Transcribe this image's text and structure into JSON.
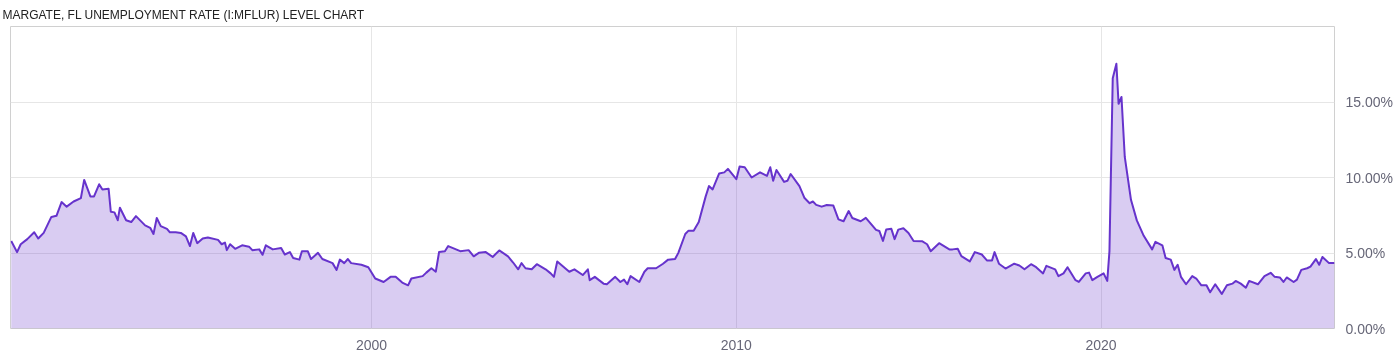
{
  "chart_data": {
    "type": "area",
    "title": "MARGATE, FL UNEMPLOYMENT RATE (I:MFLUR) LEVEL CHART",
    "xlim": [
      1990.1,
      2026.4
    ],
    "xticks": [
      2000,
      2010,
      2020
    ],
    "ylim": [
      0,
      20
    ],
    "yticks": [
      {
        "value": 0,
        "label": "0.00%"
      },
      {
        "value": 5,
        "label": "5.00%"
      },
      {
        "value": 10,
        "label": "10.00%"
      },
      {
        "value": 15,
        "label": "15.00%"
      }
    ],
    "grid": true,
    "series": [
      {
        "color": "#6633cc",
        "x": [
          1990.12,
          1990.28,
          1990.38,
          1990.56,
          1990.75,
          1990.86,
          1991.01,
          1991.22,
          1991.36,
          1991.5,
          1991.64,
          1991.83,
          1992.03,
          1992.12,
          1992.29,
          1992.39,
          1992.53,
          1992.62,
          1992.79,
          1992.85,
          1992.95,
          1993.04,
          1993.1,
          1993.27,
          1993.41,
          1993.54,
          1993.79,
          1993.93,
          1994.02,
          1994.11,
          1994.22,
          1994.39,
          1994.47,
          1994.63,
          1994.77,
          1994.91,
          1995.02,
          1995.11,
          1995.22,
          1995.37,
          1995.51,
          1995.79,
          1995.89,
          1995.98,
          1996.03,
          1996.12,
          1996.26,
          1996.45,
          1996.64,
          1996.73,
          1996.92,
          1997.01,
          1997.1,
          1997.29,
          1997.52,
          1997.62,
          1997.76,
          1997.85,
          1998.02,
          1998.09,
          1998.25,
          1998.34,
          1998.53,
          1998.65,
          1998.93,
          1999.04,
          1999.13,
          1999.25,
          1999.35,
          1999.44,
          1999.72,
          1999.91,
          2000.1,
          2000.33,
          2000.52,
          2000.66,
          2000.84,
          2001.0,
          2001.09,
          2001.4,
          2001.5,
          2001.64,
          2001.76,
          2001.85,
          2002.01,
          2002.1,
          2002.43,
          2002.66,
          2002.8,
          2002.94,
          2003.13,
          2003.32,
          2003.5,
          2003.74,
          2003.88,
          2004.02,
          2004.11,
          2004.22,
          2004.39,
          2004.53,
          2004.77,
          2004.91,
          2005.0,
          2005.09,
          2005.42,
          2005.56,
          2005.79,
          2005.93,
          2005.98,
          2006.12,
          2006.36,
          2006.45,
          2006.68,
          2006.82,
          2006.92,
          2007.01,
          2007.1,
          2007.34,
          2007.48,
          2007.57,
          2007.8,
          2007.99,
          2008.13,
          2008.32,
          2008.41,
          2008.6,
          2008.69,
          2008.83,
          2008.97,
          2009.16,
          2009.25,
          2009.35,
          2009.53,
          2009.67,
          2009.77,
          2010.0,
          2010.09,
          2010.23,
          2010.42,
          2010.65,
          2010.84,
          2010.93,
          2011.01,
          2011.1,
          2011.31,
          2011.4,
          2011.49,
          2011.73,
          2011.87,
          2012.01,
          2012.1,
          2012.19,
          2012.34,
          2012.48,
          2012.66,
          2012.8,
          2012.94,
          2013.08,
          2013.18,
          2013.41,
          2013.55,
          2013.83,
          2013.92,
          2014.02,
          2014.11,
          2014.25,
          2014.34,
          2014.44,
          2014.58,
          2014.72,
          2014.86,
          2015.09,
          2015.23,
          2015.33,
          2015.56,
          2015.84,
          2015.93,
          2016.07,
          2016.17,
          2016.4,
          2016.54,
          2016.73,
          2016.87,
          2017.01,
          2017.08,
          2017.2,
          2017.38,
          2017.62,
          2017.76,
          2017.9,
          2018.08,
          2018.22,
          2018.41,
          2018.5,
          2018.74,
          2018.83,
          2018.97,
          2019.08,
          2019.3,
          2019.39,
          2019.58,
          2019.67,
          2019.76,
          2019.9,
          2020.07,
          2020.17,
          2020.23,
          2020.32,
          2020.42,
          2020.48,
          2020.56,
          2020.65,
          2020.82,
          2020.98,
          2021.17,
          2021.4,
          2021.49,
          2021.68,
          2021.77,
          2021.91,
          2022.01,
          2022.1,
          2022.19,
          2022.33,
          2022.5,
          2022.61,
          2022.75,
          2022.89,
          2022.99,
          2023.13,
          2023.31,
          2023.45,
          2023.6,
          2023.69,
          2023.83,
          2023.97,
          2024.06,
          2024.3,
          2024.48,
          2024.65,
          2024.76,
          2024.9,
          2025.0,
          2025.09,
          2025.28,
          2025.37,
          2025.49,
          2025.65,
          2025.74,
          2025.89,
          2025.98,
          2026.07,
          2026.25,
          2026.4
        ],
        "values": [
          5.8,
          5.06,
          5.58,
          5.92,
          6.37,
          5.96,
          6.33,
          7.39,
          7.46,
          8.37,
          8.07,
          8.41,
          8.64,
          9.84,
          8.75,
          8.75,
          9.55,
          9.21,
          9.25,
          7.73,
          7.69,
          7.17,
          8.0,
          7.17,
          7.05,
          7.44,
          6.83,
          6.67,
          6.26,
          7.32,
          6.78,
          6.6,
          6.37,
          6.37,
          6.33,
          6.1,
          5.46,
          6.33,
          5.65,
          5.96,
          6.03,
          5.87,
          5.58,
          5.69,
          5.19,
          5.58,
          5.28,
          5.51,
          5.42,
          5.19,
          5.24,
          4.88,
          5.51,
          5.24,
          5.33,
          4.9,
          5.06,
          4.67,
          4.56,
          5.12,
          5.12,
          4.6,
          5.01,
          4.6,
          4.33,
          3.88,
          4.56,
          4.33,
          4.6,
          4.33,
          4.22,
          4.06,
          3.31,
          3.08,
          3.42,
          3.42,
          3.04,
          2.86,
          3.31,
          3.47,
          3.7,
          3.99,
          3.76,
          5.06,
          5.12,
          5.46,
          5.12,
          5.19,
          4.78,
          5.01,
          5.06,
          4.74,
          5.17,
          4.78,
          4.37,
          3.92,
          4.33,
          3.99,
          3.92,
          4.26,
          3.92,
          3.65,
          3.42,
          4.44,
          3.76,
          3.92,
          3.54,
          3.92,
          3.2,
          3.42,
          2.97,
          2.93,
          3.42,
          3.08,
          3.24,
          2.93,
          3.47,
          3.08,
          3.76,
          3.99,
          3.99,
          4.29,
          4.56,
          4.6,
          5.01,
          6.26,
          6.48,
          6.48,
          7.05,
          8.75,
          9.43,
          9.21,
          10.27,
          10.34,
          10.57,
          9.89,
          10.73,
          10.68,
          10.0,
          10.34,
          10.11,
          10.68,
          9.78,
          10.5,
          9.71,
          9.78,
          10.23,
          9.43,
          8.64,
          8.3,
          8.41,
          8.19,
          8.07,
          8.18,
          8.14,
          7.23,
          7.1,
          7.78,
          7.32,
          7.1,
          7.33,
          6.53,
          6.46,
          5.8,
          6.55,
          6.6,
          5.92,
          6.55,
          6.64,
          6.33,
          5.8,
          5.78,
          5.58,
          5.12,
          5.65,
          5.24,
          5.24,
          5.28,
          4.79,
          4.44,
          5.06,
          4.9,
          4.51,
          4.51,
          5.06,
          4.29,
          3.97,
          4.29,
          4.17,
          3.92,
          4.26,
          4.06,
          3.65,
          4.15,
          3.92,
          3.47,
          3.65,
          4.06,
          3.2,
          3.08,
          3.65,
          3.7,
          3.2,
          3.42,
          3.65,
          3.15,
          5.12,
          16.58,
          17.53,
          14.88,
          15.33,
          11.36,
          8.52,
          7.16,
          6.14,
          5.24,
          5.74,
          5.51,
          4.67,
          4.56,
          3.88,
          4.22,
          3.42,
          2.93,
          3.47,
          3.31,
          2.86,
          2.86,
          2.4,
          2.93,
          2.29,
          2.86,
          2.97,
          3.15,
          2.97,
          2.7,
          3.15,
          2.93,
          3.47,
          3.69,
          3.42,
          3.38,
          3.08,
          3.38,
          3.08,
          3.24,
          3.88,
          3.99,
          4.1,
          4.6,
          4.22,
          4.74,
          4.33,
          4.33
        ]
      }
    ]
  }
}
